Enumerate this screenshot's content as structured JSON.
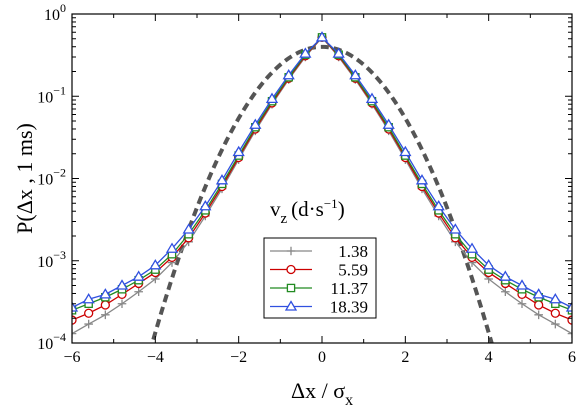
{
  "chart_data": {
    "type": "line",
    "title": "",
    "xlabel": "Δx / σ_x",
    "ylabel": "P(Δx , 1 ms)",
    "xlim": [
      -6,
      6
    ],
    "ylim": [
      0.0001,
      1
    ],
    "yscale": "log",
    "x_ticks": [
      -6,
      -4,
      -2,
      0,
      2,
      4,
      6
    ],
    "x_tick_labels": [
      "−6",
      "−4",
      "−2",
      "0",
      "2",
      "4",
      "6"
    ],
    "y_ticks": [
      0.0001,
      0.001,
      0.01,
      0.1,
      1
    ],
    "y_tick_labels": [
      {
        "base": "10",
        "exp": "−4"
      },
      {
        "base": "10",
        "exp": "−3"
      },
      {
        "base": "10",
        "exp": "−2"
      },
      {
        "base": "10",
        "exp": "−1"
      },
      {
        "base": "10",
        "exp": "0"
      }
    ],
    "legend": {
      "title": "v_z (d·s⁻¹)",
      "title_parts": {
        "v": "v",
        "sub": "z",
        "unit": "(d·s",
        "sup": "−1",
        "close": ")"
      },
      "placement": "lower-center"
    },
    "x": [
      -6,
      -5.6,
      -5.2,
      -4.8,
      -4.4,
      -4.0,
      -3.6,
      -3.2,
      -2.8,
      -2.4,
      -2.0,
      -1.6,
      -1.2,
      -0.8,
      -0.4,
      0,
      0.4,
      0.8,
      1.2,
      1.6,
      2.0,
      2.4,
      2.8,
      3.2,
      3.6,
      4.0,
      4.4,
      4.8,
      5.2,
      5.6,
      6.0
    ],
    "series": [
      {
        "name": "1.38",
        "color": "#888888",
        "marker": "plus",
        "values": [
          0.00013,
          0.00017,
          0.00022,
          0.0003,
          0.00042,
          0.0006,
          0.00095,
          0.0017,
          0.0035,
          0.0075,
          0.017,
          0.038,
          0.08,
          0.16,
          0.3,
          0.52,
          0.3,
          0.16,
          0.08,
          0.038,
          0.017,
          0.0075,
          0.0035,
          0.0017,
          0.00095,
          0.0006,
          0.00042,
          0.0003,
          0.00022,
          0.00017,
          0.00013
        ]
      },
      {
        "name": "5.59",
        "color": "#cc0000",
        "marker": "circle",
        "values": [
          0.00019,
          0.00023,
          0.00029,
          0.00039,
          0.00053,
          0.00072,
          0.0011,
          0.0019,
          0.0038,
          0.008,
          0.018,
          0.04,
          0.083,
          0.165,
          0.31,
          0.52,
          0.31,
          0.165,
          0.083,
          0.04,
          0.018,
          0.008,
          0.0038,
          0.0019,
          0.0011,
          0.00072,
          0.00053,
          0.00039,
          0.00029,
          0.00023,
          0.00019
        ]
      },
      {
        "name": "11.37",
        "color": "#228b22",
        "marker": "square",
        "values": [
          0.00025,
          0.0003,
          0.00036,
          0.00045,
          0.00058,
          0.00078,
          0.0012,
          0.0021,
          0.0041,
          0.0086,
          0.019,
          0.042,
          0.087,
          0.17,
          0.32,
          0.52,
          0.32,
          0.17,
          0.087,
          0.042,
          0.019,
          0.0086,
          0.0041,
          0.0021,
          0.0012,
          0.00078,
          0.00058,
          0.00045,
          0.00036,
          0.0003,
          0.00025
        ]
      },
      {
        "name": "18.39",
        "color": "#3050e0",
        "marker": "triangle",
        "values": [
          0.00027,
          0.00034,
          0.00039,
          0.0005,
          0.00064,
          0.00088,
          0.0014,
          0.0024,
          0.0046,
          0.0095,
          0.021,
          0.045,
          0.093,
          0.18,
          0.33,
          0.52,
          0.33,
          0.18,
          0.093,
          0.045,
          0.021,
          0.0095,
          0.0046,
          0.0024,
          0.0014,
          0.00088,
          0.00064,
          0.0005,
          0.00039,
          0.00034,
          0.00027
        ]
      }
    ],
    "reference_curve": {
      "style": "dashed",
      "color": "#555555",
      "kind": "gaussian",
      "mean": 0,
      "sigma": 1,
      "peak": 0.3989
    }
  }
}
